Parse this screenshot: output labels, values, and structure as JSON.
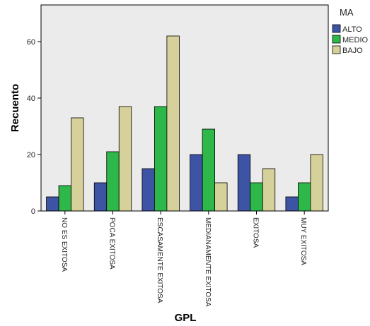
{
  "chart_data": {
    "type": "bar",
    "xlabel": "GPL",
    "ylabel": "Recuento",
    "ylim": [
      0,
      73
    ],
    "yticks": [
      0,
      20,
      40,
      60
    ],
    "grid": false,
    "legend_title": "MA",
    "legend_position": "right",
    "plot_background": "#ebebeb",
    "categories": [
      "NO ES EXITOSA",
      "POCA EXITOSA",
      "ESCASAMENTE EXITOSA",
      "MEDIANAMENTE EXITOSA",
      "EXITOSA",
      "MUY EXITOSA"
    ],
    "series": [
      {
        "name": "ALTO",
        "color": "#3d53a4",
        "values": [
          5,
          10,
          15,
          20,
          20,
          5
        ]
      },
      {
        "name": "MEDIO",
        "color": "#2eb84a",
        "values": [
          9,
          21,
          37,
          29,
          10,
          10
        ]
      },
      {
        "name": "BAJO",
        "color": "#d6d09a",
        "values": [
          33,
          37,
          62,
          10,
          15,
          20
        ]
      }
    ]
  }
}
